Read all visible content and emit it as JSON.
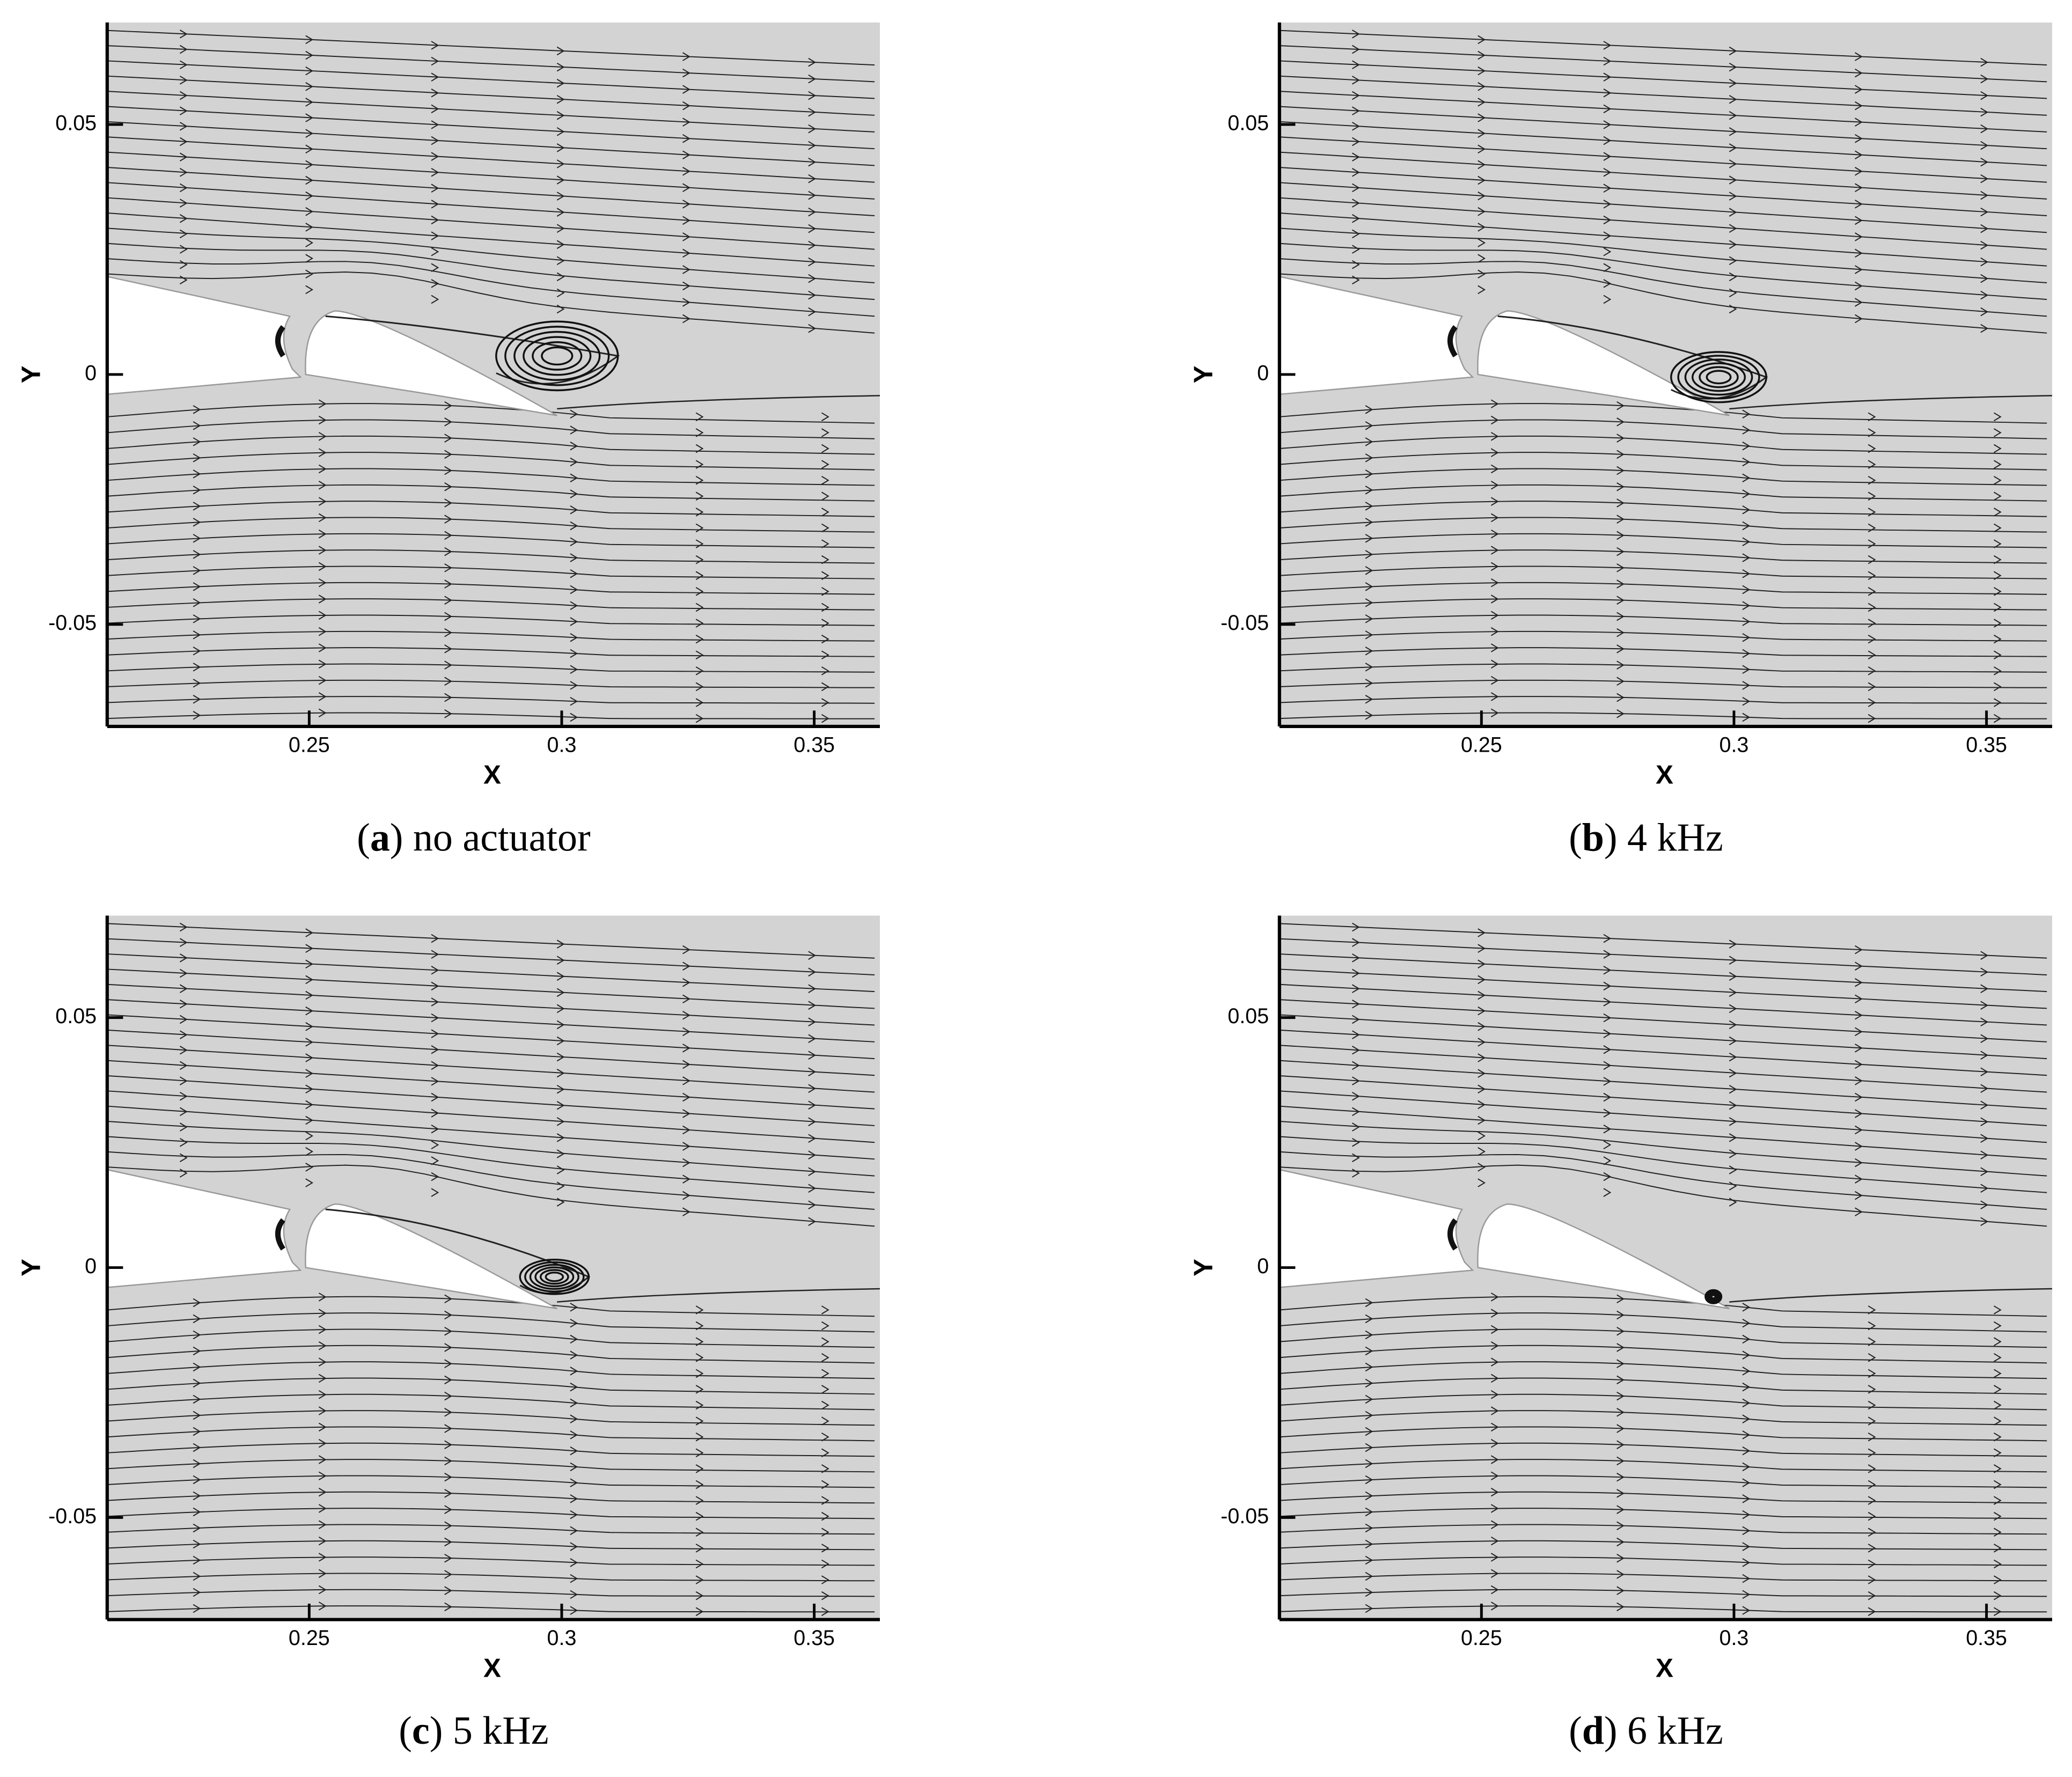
{
  "chart_data": [
    {
      "type": "streamline",
      "xlabel": "X",
      "ylabel": "Y",
      "xlim": [
        0.21,
        0.363
      ],
      "ylim": [
        -0.0704,
        0.0704
      ],
      "xticks": [
        0.25,
        0.3,
        0.35
      ],
      "yticks": [
        -0.05,
        0,
        0.05
      ],
      "caption": [
        "(",
        "a",
        ")",
        " no actuator"
      ]
    },
    {
      "type": "streamline",
      "xlabel": "X",
      "ylabel": "Y",
      "xlim": [
        0.21,
        0.363
      ],
      "ylim": [
        -0.0704,
        0.0704
      ],
      "xticks": [
        0.25,
        0.3,
        0.35
      ],
      "yticks": [
        -0.05,
        0,
        0.05
      ],
      "caption": [
        "(",
        "b",
        ")",
        " 4 kHz"
      ]
    },
    {
      "type": "streamline",
      "xlabel": "X",
      "ylabel": "Y",
      "xlim": [
        0.21,
        0.363
      ],
      "ylim": [
        -0.0704,
        0.0704
      ],
      "xticks": [
        0.25,
        0.3,
        0.35
      ],
      "yticks": [
        -0.05,
        0,
        0.05
      ],
      "caption": [
        "(",
        "c",
        ")",
        " 5 kHz"
      ]
    },
    {
      "type": "streamline",
      "xlabel": "X",
      "ylabel": "Y",
      "xlim": [
        0.21,
        0.363
      ],
      "ylim": [
        -0.0704,
        0.0704
      ],
      "xticks": [
        0.25,
        0.3,
        0.35
      ],
      "yticks": [
        -0.05,
        0,
        0.05
      ],
      "caption": [
        "(",
        "d",
        ")",
        " 6 kHz"
      ]
    }
  ]
}
